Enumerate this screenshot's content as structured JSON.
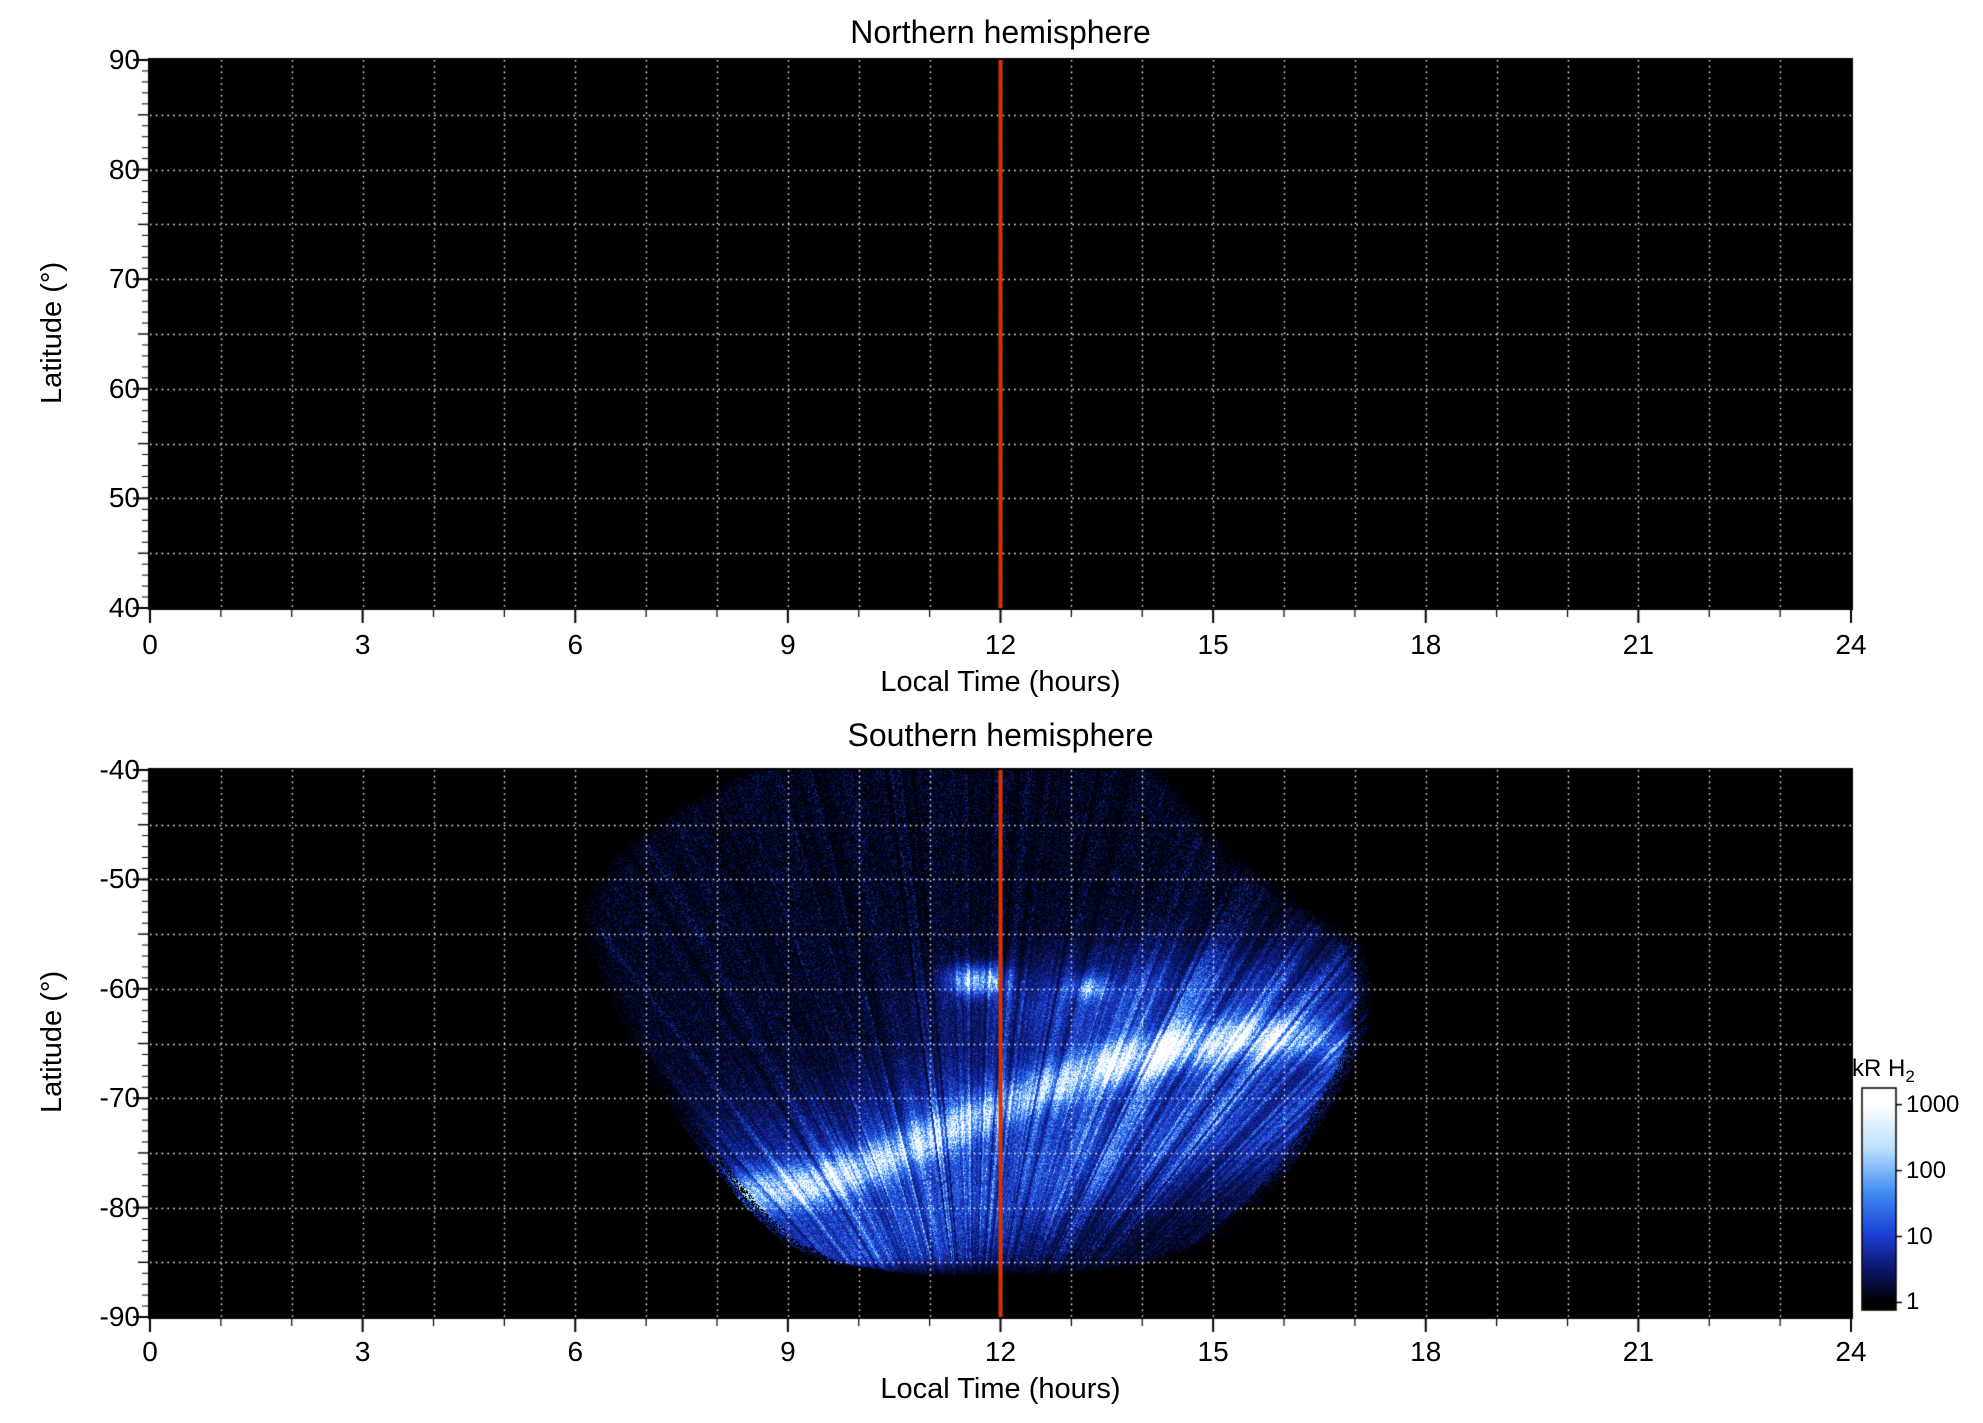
{
  "chart_data": [
    {
      "type": "heatmap",
      "title": "Northern hemisphere",
      "xlabel": "Local Time (hours)",
      "ylabel": "Latitude (°)",
      "xlim": [
        0,
        24
      ],
      "ylim": [
        40,
        90
      ],
      "x_ticks": [
        0,
        3,
        6,
        9,
        12,
        15,
        18,
        21,
        24
      ],
      "y_ticks": [
        90,
        80,
        70,
        60,
        50,
        40
      ],
      "grid": {
        "x_step_hours": 1,
        "y_step_deg": 5,
        "style": "dotted",
        "color": "#ffffff"
      },
      "background": "#000000",
      "reference_line": {
        "x_hours": 12,
        "color": "#d53500"
      },
      "data_note": "No emission data visible; panel entirely black"
    },
    {
      "type": "heatmap",
      "title": "Southern hemisphere",
      "xlabel": "Local Time (hours)",
      "ylabel": "Latitude (°)",
      "xlim": [
        0,
        24
      ],
      "ylim": [
        -90,
        -40
      ],
      "x_ticks": [
        0,
        3,
        6,
        9,
        12,
        15,
        18,
        21,
        24
      ],
      "y_ticks": [
        -40,
        -50,
        -60,
        -70,
        -80,
        -90
      ],
      "grid": {
        "x_step_hours": 1,
        "y_step_deg": 5,
        "style": "dotted",
        "color": "#ffffff"
      },
      "background": "#000000",
      "reference_line": {
        "x_hours": 12,
        "color": "#d53500"
      },
      "colorbar": {
        "label": "kR H",
        "label_sub": "2",
        "scale": "log",
        "ticks": [
          1000,
          100,
          10,
          1
        ],
        "colors": [
          "#000000",
          "#0b1668",
          "#1c3fd4",
          "#3e8bf2",
          "#bce0ff",
          "#ffffff"
        ]
      },
      "swath": {
        "description": "Fan-shaped observation swath of speckled H2 auroral emission, local time ~6h to ~17.3h, latitude -40 to ~-86",
        "edges": [
          [
            -40,
            8.4,
            14.3
          ],
          [
            -44,
            7.3,
            14.8
          ],
          [
            -48,
            6.5,
            15.3
          ],
          [
            -52,
            6.1,
            16.2
          ],
          [
            -56,
            6.15,
            17.1
          ],
          [
            -60,
            6.4,
            17.25
          ],
          [
            -64,
            6.7,
            17.15
          ],
          [
            -68,
            7.05,
            16.9
          ],
          [
            -72,
            7.45,
            16.55
          ],
          [
            -76,
            7.9,
            16.15
          ],
          [
            -80,
            8.4,
            15.6
          ],
          [
            -83,
            8.9,
            15.0
          ],
          [
            -85,
            9.5,
            14.2
          ],
          [
            -86.3,
            10.8,
            12.8
          ]
        ]
      },
      "auroral_oval": {
        "description": "Bright auroral arc rising from (~9h, -78°) to (~15h, -65°), brightest near 9-10h and 14-16h",
        "path": [
          [
            7.4,
            -79.5,
            0.4
          ],
          [
            8.3,
            -78.8,
            0.85
          ],
          [
            9.3,
            -78.0,
            1.05
          ],
          [
            10.2,
            -76.0,
            0.75
          ],
          [
            11.0,
            -73.6,
            0.85
          ],
          [
            11.8,
            -71.3,
            0.65
          ],
          [
            12.6,
            -69.2,
            0.65
          ],
          [
            13.4,
            -67.2,
            0.9
          ],
          [
            14.2,
            -65.8,
            1.05
          ],
          [
            15.1,
            -64.7,
            1.05
          ],
          [
            15.9,
            -64.3,
            0.8
          ],
          [
            16.6,
            -64.9,
            0.45
          ]
        ],
        "core_sigma_deg": 1.75,
        "glow_sigma_deg": 6.4,
        "lower_diffuse": {
          "lat_offset": -8.5,
          "amp": 0.32,
          "sigma_deg": 5.0
        }
      },
      "hot_spots": [
        {
          "lt": 11.68,
          "lat": -59.2,
          "sigma_lt": 0.35,
          "sigma_lat": 1.2,
          "amp": 1.0
        },
        {
          "lt": 13.25,
          "lat": -59.9,
          "sigma_lt": 0.27,
          "sigma_lat": 1.0,
          "amp": 0.55
        },
        {
          "lt": 14.4,
          "lat": -60.0,
          "sigma_lt": 2.4,
          "sigma_lat": 3.7,
          "amp": 0.15
        },
        {
          "lt": 12.4,
          "lat": -61.5,
          "sigma_lt": 1.3,
          "sigma_lat": 2.7,
          "amp": 0.12
        }
      ]
    }
  ]
}
